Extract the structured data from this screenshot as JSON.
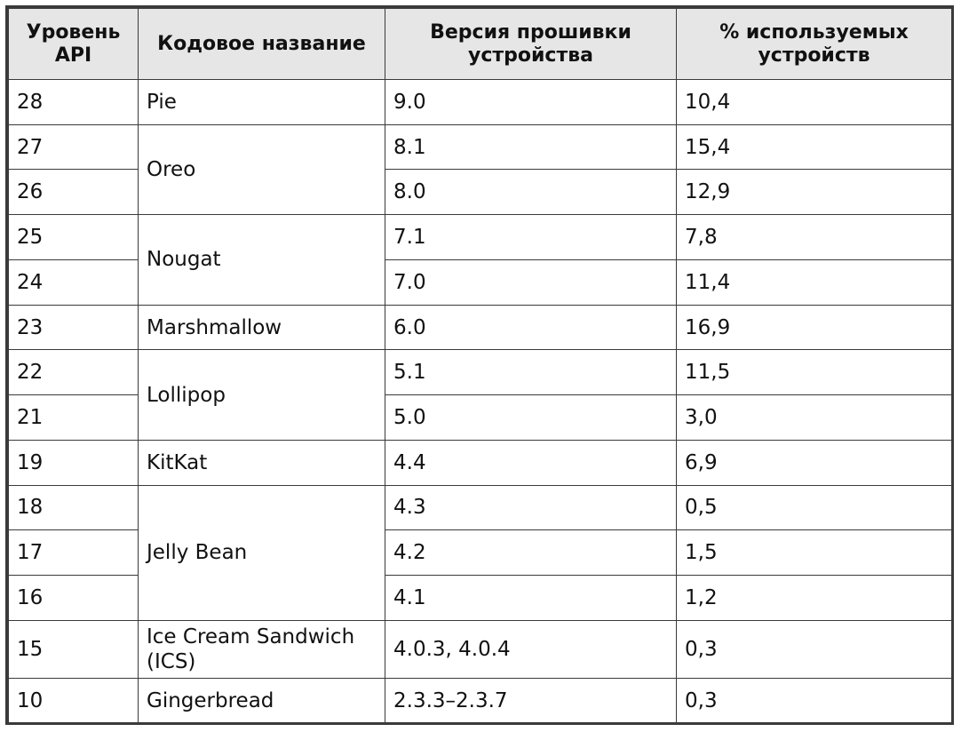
{
  "headers": [
    "Уровень API",
    "Кодовое название",
    "Версия прошивки устройства",
    "% используемых устройств"
  ],
  "header_lines": [
    [
      "Уровень",
      "API"
    ],
    [
      "Кодовое название"
    ],
    [
      "Версия прошивки",
      "устройства"
    ],
    [
      "% используемых",
      "устройств"
    ]
  ],
  "rows": [
    {
      "api": "28",
      "name": "Pie",
      "version": "9.0",
      "percent": "10,4"
    },
    {
      "api": "27",
      "name": "Oreo",
      "version": "8.1",
      "percent": "15,4"
    },
    {
      "api": "26",
      "name": "Oreo",
      "version": "8.0",
      "percent": "12,9"
    },
    {
      "api": "25",
      "name": "Nougat",
      "version": "7.1",
      "percent": "7,8"
    },
    {
      "api": "24",
      "name": "Nougat",
      "version": "7.0",
      "percent": "11,4"
    },
    {
      "api": "23",
      "name": "Marshmallow",
      "version": "6.0",
      "percent": "16,9"
    },
    {
      "api": "22",
      "name": "Lollipop",
      "version": "5.1",
      "percent": "11,5"
    },
    {
      "api": "21",
      "name": "Lollipop",
      "version": "5.0",
      "percent": "3,0"
    },
    {
      "api": "19",
      "name": "KitKat",
      "version": "4.4",
      "percent": "6,9"
    },
    {
      "api": "18",
      "name": "Jelly Bean",
      "version": "4.3",
      "percent": "0,5"
    },
    {
      "api": "17",
      "name": "Jelly Bean",
      "version": "4.2",
      "percent": "1,5"
    },
    {
      "api": "16",
      "name": "Jelly Bean",
      "version": "4.1",
      "percent": "1,2"
    },
    {
      "api": "15",
      "name_lines": [
        "Ice Cream Sandwich",
        "(ICS)"
      ],
      "name": "Ice Cream Sandwich (ICS)",
      "version": "4.0.3, 4.0.4",
      "percent": "0,3"
    },
    {
      "api": "10",
      "name": "Gingerbread",
      "version": "2.3.3–2.3.7",
      "percent": "0,3"
    }
  ],
  "colors": {
    "border": "#3a3a3a",
    "header_bg": "#e6e6e6",
    "text": "#111111"
  }
}
